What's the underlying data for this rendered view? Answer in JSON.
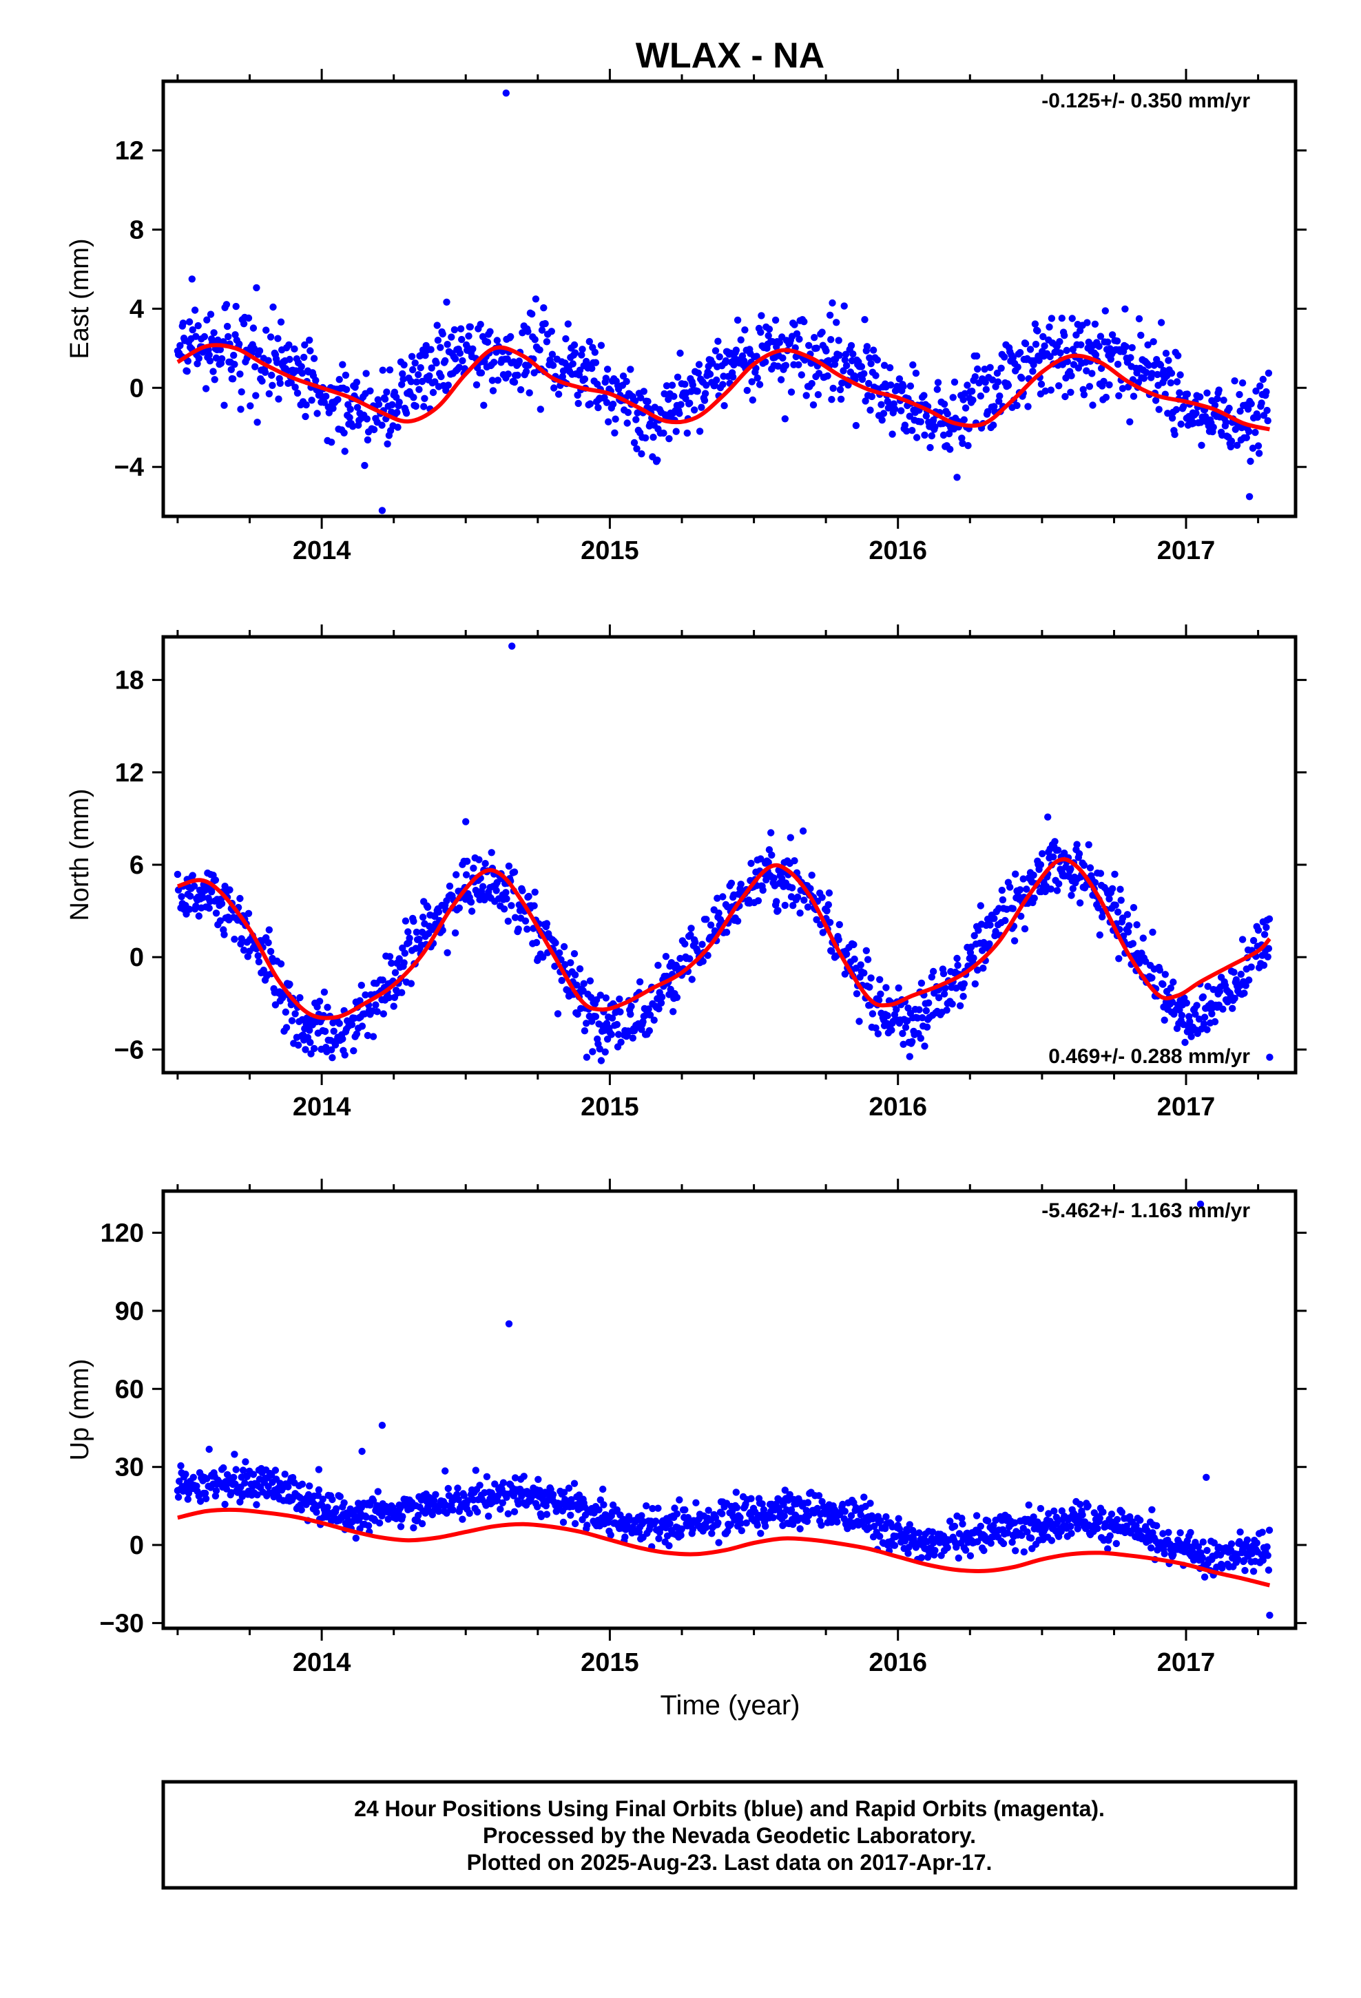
{
  "title": "WLAX - NA",
  "xlabel": "Time (year)",
  "footer": {
    "line1": "24 Hour Positions Using Final Orbits (blue) and Rapid Orbits (magenta).",
    "line2": "Processed by the Nevada Geodetic Laboratory.",
    "line3": "Plotted on 2025-Aug-23. Last data on 2017-Apr-17."
  },
  "colors": {
    "points": "#0000ff",
    "fit": "#ff0000",
    "axes": "#000000"
  },
  "chart_data": [
    {
      "type": "scatter",
      "ylabel": "East (mm)",
      "rate": "-0.125+/- 0.350 mm/yr",
      "rate_position": "top-right",
      "xlim": [
        2013.45,
        2017.38
      ],
      "ylim": [
        -6.5,
        15.5
      ],
      "xticks": [
        2014,
        2015,
        2016,
        2017
      ],
      "yticks": [
        -4,
        0,
        4,
        8,
        12
      ],
      "ytick_labels": [
        "−4",
        "0",
        "4",
        "8",
        "12"
      ],
      "x_start": 2013.5,
      "x_end": 2017.29,
      "seasonal": {
        "offset": 0.47,
        "trend": -0.125,
        "annual_amp": 1.65,
        "annual_phase_peak": 2013.64,
        "semi_amp": 0.35,
        "semi_phase_peak": 2013.9,
        "noise": 1.0
      },
      "outliers": [
        [
          2014.64,
          14.9
        ],
        [
          2014.21,
          -6.2
        ],
        [
          2013.55,
          5.5
        ],
        [
          2017.22,
          -5.5
        ]
      ],
      "fit_curve": [
        [
          2013.5,
          1.3
        ],
        [
          2013.6,
          2.1
        ],
        [
          2013.7,
          2.0
        ],
        [
          2013.8,
          1.2
        ],
        [
          2013.9,
          0.5
        ],
        [
          2014.0,
          0.0
        ],
        [
          2014.1,
          -0.5
        ],
        [
          2014.2,
          -1.2
        ],
        [
          2014.3,
          -1.7
        ],
        [
          2014.4,
          -1.0
        ],
        [
          2014.5,
          0.7
        ],
        [
          2014.6,
          2.0
        ],
        [
          2014.7,
          1.6
        ],
        [
          2014.8,
          0.5
        ],
        [
          2014.9,
          0.0
        ],
        [
          2015.0,
          -0.3
        ],
        [
          2015.1,
          -1.0
        ],
        [
          2015.2,
          -1.7
        ],
        [
          2015.3,
          -1.5
        ],
        [
          2015.4,
          -0.3
        ],
        [
          2015.5,
          1.2
        ],
        [
          2015.6,
          1.9
        ],
        [
          2015.7,
          1.5
        ],
        [
          2015.8,
          0.6
        ],
        [
          2015.9,
          -0.1
        ],
        [
          2016.0,
          -0.5
        ],
        [
          2016.1,
          -1.1
        ],
        [
          2016.2,
          -1.8
        ],
        [
          2016.3,
          -1.8
        ],
        [
          2016.4,
          -0.6
        ],
        [
          2016.5,
          0.8
        ],
        [
          2016.6,
          1.6
        ],
        [
          2016.7,
          1.3
        ],
        [
          2016.8,
          0.3
        ],
        [
          2016.9,
          -0.4
        ],
        [
          2017.0,
          -0.7
        ],
        [
          2017.1,
          -1.1
        ],
        [
          2017.2,
          -1.8
        ],
        [
          2017.29,
          -2.1
        ]
      ]
    },
    {
      "type": "scatter",
      "ylabel": "North (mm)",
      "rate": "0.469+/- 0.288 mm/yr",
      "rate_position": "bottom-right",
      "xlim": [
        2013.45,
        2017.38
      ],
      "ylim": [
        -7.5,
        20.8
      ],
      "xticks": [
        2014,
        2015,
        2016,
        2017
      ],
      "yticks": [
        -6,
        0,
        6,
        12,
        18
      ],
      "ytick_labels": [
        "−6",
        "0",
        "6",
        "12",
        "18"
      ],
      "x_start": 2013.5,
      "x_end": 2017.29,
      "seasonal": {
        "offset": 0.5,
        "trend": 0.469,
        "annual_amp": 4.7,
        "annual_phase_peak": 2013.55,
        "semi_amp": 0.4,
        "semi_phase_peak": 2013.7,
        "noise": 1.0
      },
      "outliers": [
        [
          2014.66,
          20.2
        ],
        [
          2014.92,
          -6.5
        ],
        [
          2017.29,
          -6.5
        ],
        [
          2014.5,
          8.8
        ],
        [
          2016.52,
          9.1
        ]
      ],
      "fit_curve": [
        [
          2013.5,
          4.6
        ],
        [
          2013.58,
          5.0
        ],
        [
          2013.65,
          4.2
        ],
        [
          2013.75,
          1.8
        ],
        [
          2013.85,
          -1.5
        ],
        [
          2013.95,
          -3.6
        ],
        [
          2014.05,
          -3.9
        ],
        [
          2014.15,
          -3.0
        ],
        [
          2014.25,
          -1.8
        ],
        [
          2014.35,
          0.2
        ],
        [
          2014.45,
          3.2
        ],
        [
          2014.55,
          5.4
        ],
        [
          2014.62,
          5.4
        ],
        [
          2014.7,
          3.5
        ],
        [
          2014.8,
          0.3
        ],
        [
          2014.9,
          -2.8
        ],
        [
          2014.97,
          -3.4
        ],
        [
          2015.05,
          -3.0
        ],
        [
          2015.15,
          -2.0
        ],
        [
          2015.25,
          -1.0
        ],
        [
          2015.35,
          0.8
        ],
        [
          2015.45,
          3.6
        ],
        [
          2015.55,
          5.8
        ],
        [
          2015.62,
          5.6
        ],
        [
          2015.7,
          3.8
        ],
        [
          2015.8,
          0.2
        ],
        [
          2015.9,
          -2.7
        ],
        [
          2015.97,
          -3.1
        ],
        [
          2016.05,
          -2.5
        ],
        [
          2016.15,
          -1.8
        ],
        [
          2016.25,
          -0.8
        ],
        [
          2016.35,
          1.0
        ],
        [
          2016.45,
          3.9
        ],
        [
          2016.55,
          6.2
        ],
        [
          2016.62,
          5.9
        ],
        [
          2016.7,
          3.8
        ],
        [
          2016.8,
          0.2
        ],
        [
          2016.9,
          -2.4
        ],
        [
          2016.97,
          -2.5
        ],
        [
          2017.05,
          -1.6
        ],
        [
          2017.15,
          -0.6
        ],
        [
          2017.25,
          0.4
        ],
        [
          2017.29,
          1.2
        ]
      ]
    },
    {
      "type": "scatter",
      "ylabel": "Up (mm)",
      "rate": "-5.462+/- 1.163 mm/yr",
      "rate_position": "top-right",
      "xlim": [
        2013.45,
        2017.38
      ],
      "ylim": [
        -32,
        136
      ],
      "xticks": [
        2014,
        2015,
        2016,
        2017
      ],
      "yticks": [
        -30,
        0,
        30,
        60,
        90,
        120
      ],
      "ytick_labels": [
        "−30",
        "0",
        "30",
        "60",
        "90",
        "120"
      ],
      "x_start": 2013.5,
      "x_end": 2017.29,
      "seasonal": {
        "offset": 10.5,
        "trend": -5.462,
        "annual_amp": 5.0,
        "annual_phase_peak": 2013.66,
        "semi_amp": 0.8,
        "semi_phase_peak": 2013.8,
        "noise": 3.5
      },
      "outliers": [
        [
          2017.05,
          131
        ],
        [
          2014.65,
          85
        ],
        [
          2014.21,
          46
        ],
        [
          2014.14,
          36
        ],
        [
          2017.07,
          26
        ],
        [
          2013.99,
          29
        ],
        [
          2017.29,
          -27
        ]
      ],
      "fit_curve": [
        [
          2013.5,
          10.5
        ],
        [
          2013.6,
          13.0
        ],
        [
          2013.7,
          13.5
        ],
        [
          2013.8,
          12.5
        ],
        [
          2013.9,
          11.0
        ],
        [
          2014.0,
          8.5
        ],
        [
          2014.1,
          5.5
        ],
        [
          2014.2,
          3.0
        ],
        [
          2014.3,
          1.8
        ],
        [
          2014.4,
          2.8
        ],
        [
          2014.5,
          5.0
        ],
        [
          2014.6,
          7.2
        ],
        [
          2014.7,
          8.0
        ],
        [
          2014.8,
          7.0
        ],
        [
          2014.9,
          5.0
        ],
        [
          2015.0,
          2.0
        ],
        [
          2015.1,
          -1.0
        ],
        [
          2015.2,
          -3.0
        ],
        [
          2015.3,
          -3.5
        ],
        [
          2015.4,
          -2.0
        ],
        [
          2015.5,
          0.8
        ],
        [
          2015.6,
          2.5
        ],
        [
          2015.7,
          2.0
        ],
        [
          2015.8,
          0.5
        ],
        [
          2015.9,
          -1.5
        ],
        [
          2016.0,
          -4.5
        ],
        [
          2016.1,
          -7.5
        ],
        [
          2016.2,
          -9.5
        ],
        [
          2016.3,
          -10.0
        ],
        [
          2016.4,
          -8.5
        ],
        [
          2016.5,
          -5.5
        ],
        [
          2016.6,
          -3.5
        ],
        [
          2016.7,
          -3.0
        ],
        [
          2016.8,
          -4.0
        ],
        [
          2016.9,
          -5.5
        ],
        [
          2017.0,
          -7.5
        ],
        [
          2017.1,
          -10.5
        ],
        [
          2017.2,
          -13.0
        ],
        [
          2017.29,
          -15.5
        ]
      ]
    }
  ]
}
